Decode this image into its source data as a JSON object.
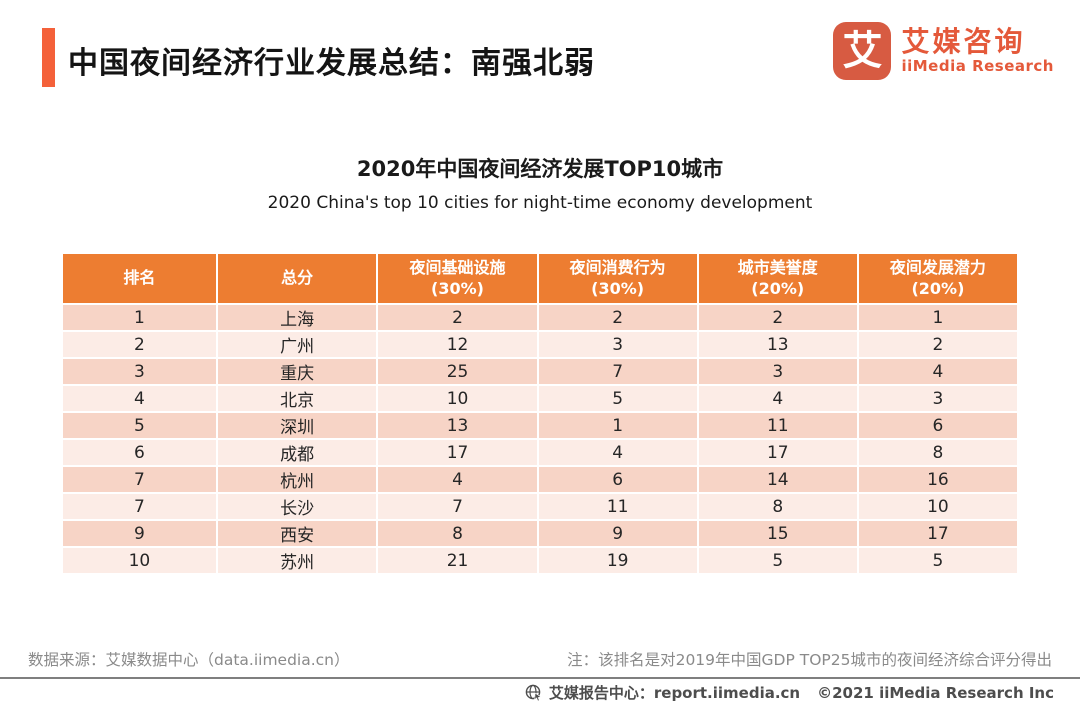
{
  "header": {
    "title": "中国夜间经济行业发展总结：南强北弱"
  },
  "logo": {
    "icon_char": "艾",
    "name_cn": "艾媒咨询",
    "name_en": "iiMedia Research"
  },
  "chart_data": {
    "type": "table",
    "title": "2020年中国夜间经济发展TOP10城市",
    "subtitle": "2020 China's top 10 cities for night-time economy development",
    "columns": [
      {
        "label": "排名",
        "sub": ""
      },
      {
        "label": "总分",
        "sub": ""
      },
      {
        "label": "夜间基础设施",
        "sub": "(30%)"
      },
      {
        "label": "夜间消费行为",
        "sub": "(30%)"
      },
      {
        "label": "城市美誉度",
        "sub": "(20%)"
      },
      {
        "label": "夜间发展潜力",
        "sub": "(20%)"
      }
    ],
    "rows": [
      [
        "1",
        "上海",
        "2",
        "2",
        "2",
        "1"
      ],
      [
        "2",
        "广州",
        "12",
        "3",
        "13",
        "2"
      ],
      [
        "3",
        "重庆",
        "25",
        "7",
        "3",
        "4"
      ],
      [
        "4",
        "北京",
        "10",
        "5",
        "4",
        "3"
      ],
      [
        "5",
        "深圳",
        "13",
        "1",
        "11",
        "6"
      ],
      [
        "6",
        "成都",
        "17",
        "4",
        "17",
        "8"
      ],
      [
        "7",
        "杭州",
        "4",
        "6",
        "14",
        "16"
      ],
      [
        "7",
        "长沙",
        "7",
        "11",
        "8",
        "10"
      ],
      [
        "9",
        "西安",
        "8",
        "9",
        "15",
        "17"
      ],
      [
        "10",
        "苏州",
        "21",
        "19",
        "5",
        "5"
      ]
    ]
  },
  "footer": {
    "source": "数据来源：艾媒数据中心（data.iimedia.cn）",
    "note": "注：该排名是对2019年中国GDP TOP25城市的夜间经济综合评分得出",
    "report": "艾媒报告中心：report.iimedia.cn",
    "copyright": "©2021  iiMedia Research  Inc"
  },
  "colors": {
    "accent_orange": "#f4613a",
    "table_header_orange": "#ed7d31",
    "row_dark_pink": "#f7d4c6",
    "row_light_pink": "#fcece6",
    "logo_red_orange": "#e4593a",
    "footnote_gray": "#8a8a8a"
  }
}
